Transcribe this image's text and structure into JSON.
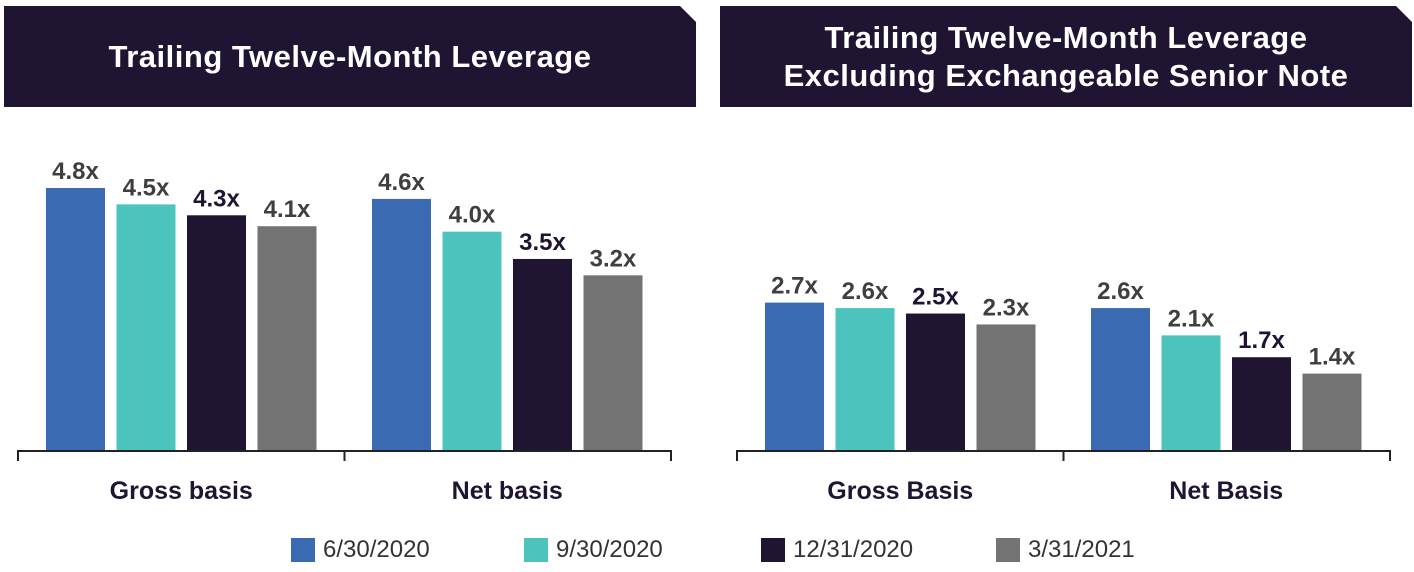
{
  "colors": {
    "banner_bg": "#201433",
    "banner_text": "#ffffff",
    "label_text": "#3f3f3f",
    "axis": "#222222",
    "series": [
      "#3a6ab2",
      "#4cc3bc",
      "#201433",
      "#737373"
    ]
  },
  "chart_data": [
    {
      "type": "bar",
      "title": "Trailing Twelve-Month Leverage",
      "categories": [
        "Gross basis",
        "Net basis"
      ],
      "series": [
        {
          "name": "6/30/2020",
          "values": [
            4.8,
            4.6
          ],
          "labels": [
            "4.8x",
            "4.6x"
          ]
        },
        {
          "name": "9/30/2020",
          "values": [
            4.5,
            4.0
          ],
          "labels": [
            "4.5x",
            "4.0x"
          ]
        },
        {
          "name": "12/31/2020",
          "values": [
            4.3,
            3.5
          ],
          "labels": [
            "4.3x",
            "3.5x"
          ]
        },
        {
          "name": "3/31/2021",
          "values": [
            4.1,
            3.2
          ],
          "labels": [
            "4.1x",
            "3.2x"
          ]
        }
      ],
      "ylim": [
        0,
        4.8
      ],
      "grid": false
    },
    {
      "type": "bar",
      "title": "Trailing Twelve-Month Leverage\nExcluding Exchangeable Senior Note",
      "categories": [
        "Gross Basis",
        "Net Basis"
      ],
      "series": [
        {
          "name": "6/30/2020",
          "values": [
            2.7,
            2.6
          ],
          "labels": [
            "2.7x",
            "2.6x"
          ]
        },
        {
          "name": "9/30/2020",
          "values": [
            2.6,
            2.1
          ],
          "labels": [
            "2.6x",
            "2.1x"
          ]
        },
        {
          "name": "12/31/2020",
          "values": [
            2.5,
            1.7
          ],
          "labels": [
            "2.5x",
            "1.7x"
          ]
        },
        {
          "name": "3/31/2021",
          "values": [
            2.3,
            1.4
          ],
          "labels": [
            "2.3x",
            "1.4x"
          ]
        }
      ],
      "ylim": [
        0,
        4.8
      ],
      "grid": false
    }
  ],
  "legend": {
    "placement": "bottom",
    "items": [
      "6/30/2020",
      "9/30/2020",
      "12/31/2020",
      "3/31/2021"
    ]
  }
}
